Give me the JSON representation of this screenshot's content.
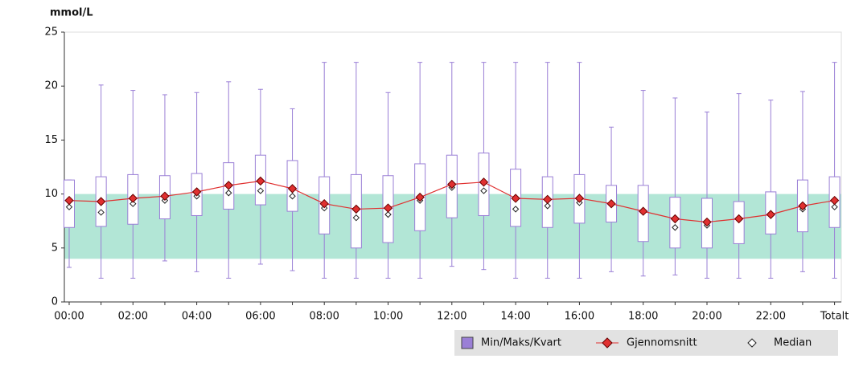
{
  "chart_data": {
    "type": "box",
    "y_label": "mmol/L",
    "ylim": [
      0,
      25
    ],
    "yticks": [
      0,
      5,
      10,
      15,
      20,
      25
    ],
    "target_range": [
      4,
      10
    ],
    "target_color": "#b2e6d6",
    "categories": [
      "00:00",
      null,
      "02:00",
      null,
      "04:00",
      null,
      "06:00",
      null,
      "08:00",
      null,
      "10:00",
      null,
      "12:00",
      null,
      "14:00",
      null,
      "16:00",
      null,
      "18:00",
      null,
      "20:00",
      null,
      "22:00",
      null,
      "Totalt"
    ],
    "series": [
      {
        "name": "Min/Maks/Kvart",
        "color": "#9a7fd6",
        "min": [
          3.2,
          2.2,
          2.2,
          3.8,
          2.8,
          2.2,
          3.5,
          2.9,
          2.2,
          2.2,
          2.2,
          2.2,
          3.3,
          3.0,
          2.2,
          2.2,
          2.2,
          2.8,
          2.4,
          2.5,
          2.2,
          2.2,
          2.2,
          2.8,
          2.2
        ],
        "q1": [
          6.9,
          7.0,
          7.2,
          7.7,
          8.0,
          8.6,
          9.0,
          8.4,
          6.3,
          5.0,
          5.5,
          6.6,
          7.8,
          8.0,
          7.0,
          6.9,
          7.3,
          7.4,
          5.6,
          5.0,
          5.0,
          5.4,
          6.3,
          6.5,
          6.9
        ],
        "q3": [
          11.3,
          11.6,
          11.8,
          11.7,
          11.9,
          12.9,
          13.6,
          13.1,
          11.6,
          11.8,
          11.7,
          12.8,
          13.6,
          13.8,
          12.3,
          11.6,
          11.8,
          10.8,
          10.8,
          9.7,
          9.6,
          9.3,
          10.2,
          11.3,
          11.6
        ],
        "max": [
          11.3,
          20.1,
          19.6,
          19.2,
          19.4,
          20.4,
          19.7,
          17.9,
          22.2,
          22.2,
          19.4,
          22.2,
          22.2,
          22.2,
          22.2,
          22.2,
          22.2,
          16.2,
          19.6,
          18.9,
          17.6,
          19.3,
          18.7,
          19.5,
          22.2
        ]
      },
      {
        "name": "Gjennomsnitt",
        "color": "#e03030",
        "values": [
          9.4,
          9.3,
          9.6,
          9.8,
          10.2,
          10.8,
          11.2,
          10.5,
          9.1,
          8.6,
          8.7,
          9.7,
          10.9,
          11.1,
          9.6,
          9.5,
          9.6,
          9.1,
          8.4,
          7.7,
          7.4,
          7.7,
          8.1,
          8.9,
          9.4
        ]
      },
      {
        "name": "Median",
        "color": "#ffffff",
        "values": [
          8.8,
          8.3,
          9.1,
          9.4,
          9.8,
          10.1,
          10.3,
          9.8,
          8.7,
          7.8,
          8.1,
          9.4,
          10.6,
          10.3,
          8.6,
          8.9,
          9.2,
          9.0,
          8.4,
          6.9,
          7.1,
          7.7,
          8.1,
          8.6,
          8.8
        ]
      }
    ]
  }
}
